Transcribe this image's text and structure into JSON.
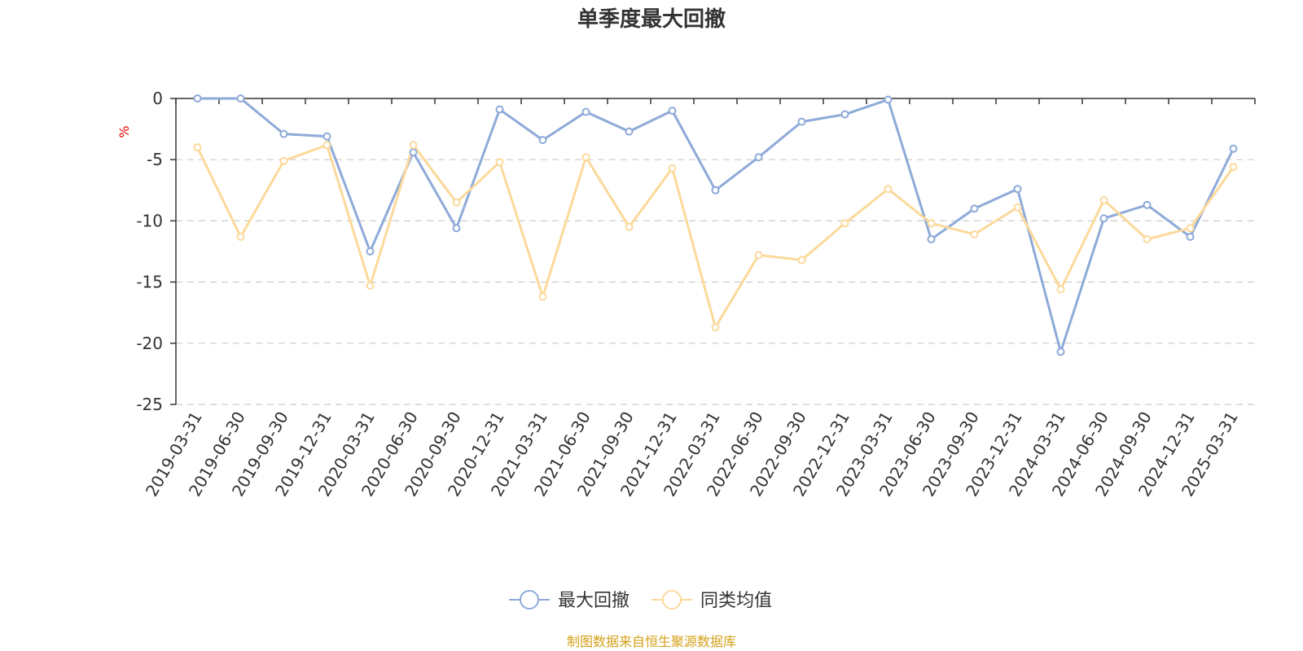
{
  "chart_data": {
    "type": "line",
    "title": "单季度最大回撤",
    "ylabel": "%",
    "ylim": [
      -25,
      0
    ],
    "yticks": [
      0,
      -5,
      -10,
      -15,
      -20,
      -25
    ],
    "grid": true,
    "legend_position": "bottom",
    "categories": [
      "2019-03-31",
      "2019-06-30",
      "2019-09-30",
      "2019-12-31",
      "2020-03-31",
      "2020-06-30",
      "2020-09-30",
      "2020-12-31",
      "2021-03-31",
      "2021-06-30",
      "2021-09-30",
      "2021-12-31",
      "2022-03-31",
      "2022-06-30",
      "2022-09-30",
      "2022-12-31",
      "2023-03-31",
      "2023-06-30",
      "2023-09-30",
      "2023-12-31",
      "2024-03-31",
      "2024-06-30",
      "2024-09-30",
      "2024-12-31",
      "2025-03-31"
    ],
    "series": [
      {
        "name": "最大回撤",
        "color": "#8eaad8",
        "values": [
          0,
          0,
          -2.9,
          -3.1,
          -12.5,
          -4.4,
          -10.6,
          -0.9,
          -3.4,
          -1.1,
          -2.7,
          -1.0,
          -7.5,
          -4.8,
          -1.9,
          -1.3,
          -0.1,
          -11.5,
          -9.0,
          -7.4,
          -20.7,
          -9.8,
          -8.7,
          -11.3,
          -4.1
        ]
      },
      {
        "name": "同类均值",
        "color": "#fcd99b",
        "values": [
          -4.0,
          -11.3,
          -5.1,
          -3.8,
          -15.3,
          -3.8,
          -8.5,
          -5.2,
          -16.2,
          -4.8,
          -10.5,
          -5.7,
          -18.7,
          -12.8,
          -13.2,
          -10.2,
          -7.4,
          -10.2,
          -11.1,
          -8.9,
          -15.6,
          -8.3,
          -11.5,
          -10.6,
          -5.6
        ]
      }
    ],
    "source": "制图数据来自恒生聚源数据库",
    "colors": {
      "axis": "#333333",
      "grid": "#cccccc",
      "unit": "#e60000",
      "source": "#d4a017"
    }
  }
}
